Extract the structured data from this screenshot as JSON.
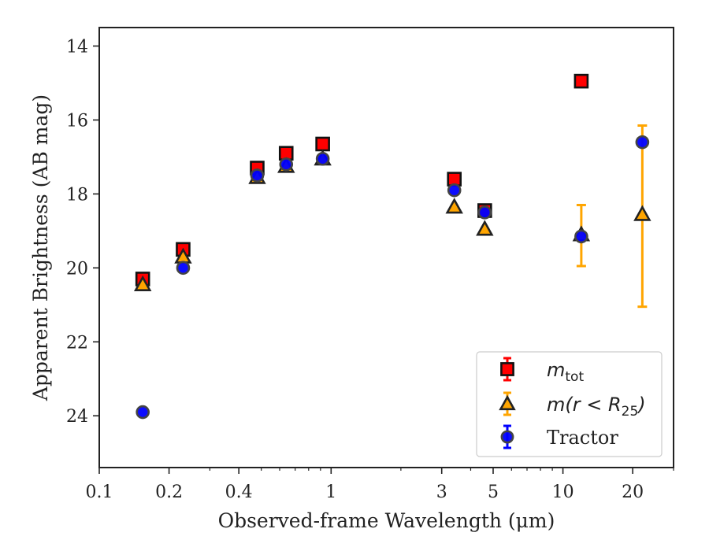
{
  "chart_data": {
    "type": "scatter",
    "title": "",
    "xlabel": "Observed-frame Wavelength (μm)",
    "ylabel": "Apparent Brightness (AB mag)",
    "xscale": "log",
    "xlim": [
      0.1,
      30
    ],
    "ylim": [
      25.4,
      13.5
    ],
    "y_inverted": true,
    "xticks": [
      {
        "value": 0.1,
        "label": "0.1"
      },
      {
        "value": 0.2,
        "label": "0.2"
      },
      {
        "value": 0.4,
        "label": "0.4"
      },
      {
        "value": 1,
        "label": "1"
      },
      {
        "value": 3,
        "label": "3"
      },
      {
        "value": 5,
        "label": "5"
      },
      {
        "value": 10,
        "label": "10"
      },
      {
        "value": 20,
        "label": "20"
      }
    ],
    "yticks": [
      {
        "value": 14,
        "label": "14"
      },
      {
        "value": 16,
        "label": "16"
      },
      {
        "value": 18,
        "label": "18"
      },
      {
        "value": 20,
        "label": "20"
      },
      {
        "value": 22,
        "label": "22"
      },
      {
        "value": 24,
        "label": "24"
      }
    ],
    "legend_position": "bottom-right",
    "series": [
      {
        "name": "m_tot",
        "legend_main": "m",
        "legend_sub": "tot",
        "marker": "square",
        "color": "#ff0000",
        "edge": "#111111",
        "points": [
          {
            "x": 0.154,
            "y": 20.3
          },
          {
            "x": 0.23,
            "y": 19.5
          },
          {
            "x": 0.48,
            "y": 17.3
          },
          {
            "x": 0.64,
            "y": 16.9
          },
          {
            "x": 0.92,
            "y": 16.65
          },
          {
            "x": 3.4,
            "y": 17.6
          },
          {
            "x": 4.6,
            "y": 18.45
          },
          {
            "x": 12.0,
            "y": 14.95
          }
        ]
      },
      {
        "name": "m(r<R25)",
        "legend_main": "m(r < R",
        "legend_sub": "25",
        "legend_tail": ")",
        "marker": "triangle",
        "color": "#ffa500",
        "edge": "#222222",
        "points": [
          {
            "x": 0.154,
            "y": 20.45
          },
          {
            "x": 0.23,
            "y": 19.7
          },
          {
            "x": 0.48,
            "y": 17.55
          },
          {
            "x": 0.64,
            "y": 17.25
          },
          {
            "x": 0.92,
            "y": 17.05
          },
          {
            "x": 3.4,
            "y": 18.35
          },
          {
            "x": 4.6,
            "y": 18.95
          },
          {
            "x": 12.0,
            "y": 19.1,
            "err_low": 18.3,
            "err_high": 19.95
          },
          {
            "x": 22.0,
            "y": 18.55,
            "err_low": 16.15,
            "err_high": 21.05
          }
        ]
      },
      {
        "name": "Tractor",
        "legend_main": "Tractor",
        "marker": "circle",
        "color": "#0000ff",
        "edge": "#444444",
        "points": [
          {
            "x": 0.154,
            "y": 23.9
          },
          {
            "x": 0.23,
            "y": 20.0
          },
          {
            "x": 0.48,
            "y": 17.5
          },
          {
            "x": 0.64,
            "y": 17.2
          },
          {
            "x": 0.92,
            "y": 17.05
          },
          {
            "x": 3.4,
            "y": 17.9
          },
          {
            "x": 4.6,
            "y": 18.5
          },
          {
            "x": 12.0,
            "y": 19.15
          },
          {
            "x": 22.0,
            "y": 16.6
          }
        ]
      }
    ]
  }
}
